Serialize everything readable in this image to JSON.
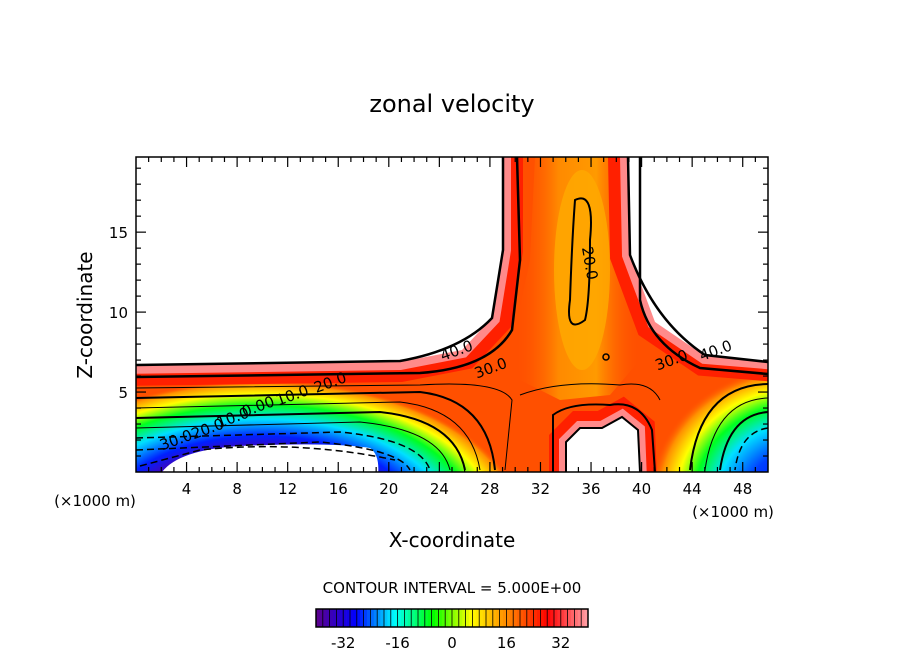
{
  "chart_data": {
    "type": "contour",
    "title": "zonal velocity",
    "xlabel": "X-coordinate",
    "ylabel": "Z-coordinate",
    "x_unit_label": "(×1000 m)",
    "y_unit_label": "(×1000 m)",
    "xlim": [
      0,
      50
    ],
    "ylim": [
      0,
      19.7
    ],
    "xticks": [
      4,
      8,
      12,
      16,
      20,
      24,
      28,
      32,
      36,
      40,
      44,
      48
    ],
    "yticks": [
      5,
      10,
      15
    ],
    "contour_interval_text": "CONTOUR INTERVAL = 5.000E+00",
    "contour_interval": 5.0,
    "contour_labels": [
      {
        "text": "40.0",
        "x": 25.5,
        "z": 7.3
      },
      {
        "text": "30.0",
        "x": 28.2,
        "z": 6.2
      },
      {
        "text": "20.0",
        "x": 35.5,
        "z": 13
      },
      {
        "text": "40.0",
        "x": 46,
        "z": 7.3
      },
      {
        "text": "30.0",
        "x": 42.5,
        "z": 6.7
      },
      {
        "text": "20.0",
        "x": 15.5,
        "z": 5.3
      },
      {
        "text": "10.0",
        "x": 12.5,
        "z": 4.5
      },
      {
        "text": "0.00",
        "x": 9.8,
        "z": 3.8
      },
      {
        "text": "10.0",
        "x": 7.8,
        "z": 3.1
      },
      {
        "text": "20.0",
        "x": 5.8,
        "z": 2.4
      },
      {
        "text": "30.0",
        "x": 3.3,
        "z": 1.7
      }
    ],
    "colorbar": {
      "range": [
        -40,
        40
      ],
      "ticks": [
        -32,
        -16,
        0,
        16,
        32
      ],
      "colors": [
        "#5a0090",
        "#0000ff",
        "#00ffff",
        "#00ff00",
        "#ffff00",
        "#ff8000",
        "#ff0000",
        "#ff9aa0"
      ]
    }
  }
}
